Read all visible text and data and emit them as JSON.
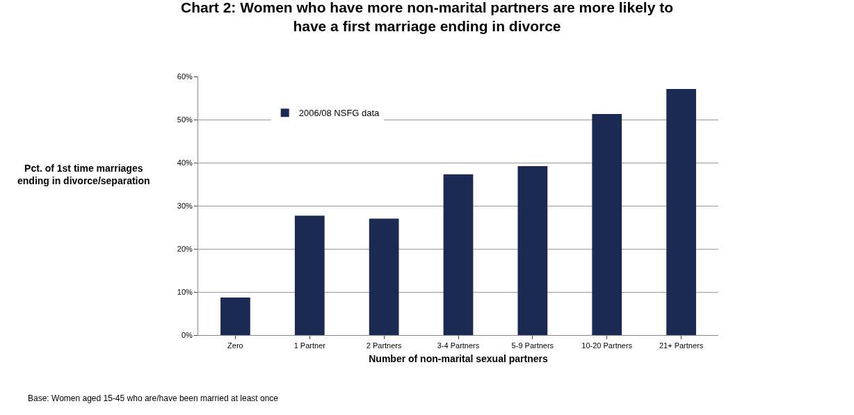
{
  "chart_data": {
    "type": "bar",
    "title": "Chart 2: Women who have more non-marital partners are more likely to have a first marriage ending in divorce",
    "xlabel": "Number of non-marital sexual partners",
    "ylabel": "Pct. of 1st time marriages ending in divorce/separation",
    "categories": [
      "Zero",
      "1 Partner",
      "2 Partners",
      "3-4 Partners",
      "5-9 Partners",
      "10-20 Partners",
      "21+ Partners"
    ],
    "series": [
      {
        "name": "2006/08 NSFG data",
        "color": "#1b2a52",
        "values": [
          8.7,
          27.7,
          27.0,
          37.3,
          39.2,
          51.3,
          57.1
        ]
      }
    ],
    "ylim": [
      0,
      60
    ],
    "yticks": [
      {
        "value": 0,
        "label": "0%"
      },
      {
        "value": 10,
        "label": "10%"
      },
      {
        "value": 20,
        "label": "20%"
      },
      {
        "value": 30,
        "label": "30%"
      },
      {
        "value": 40,
        "label": "40%"
      },
      {
        "value": 50,
        "label": "50%"
      },
      {
        "value": 60,
        "label": "60%"
      }
    ],
    "grid": "y",
    "legend": "top left",
    "annotations": [
      "Base: Women aged 15-45 who are/have been married at least once"
    ]
  }
}
